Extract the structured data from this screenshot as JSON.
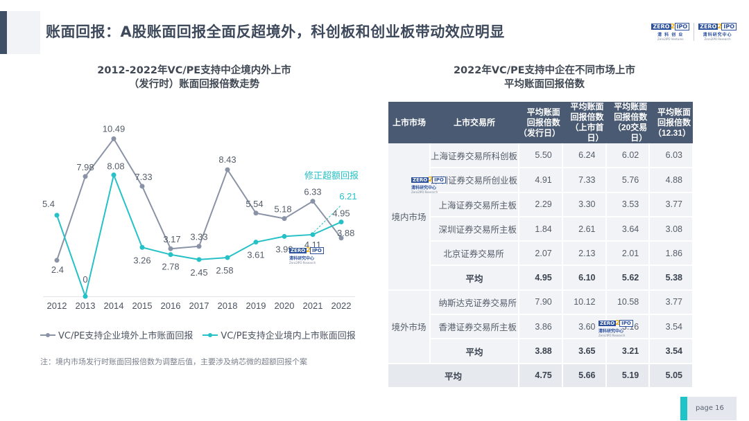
{
  "header": {
    "title": "账面回报：A股账面回报全面反超境外，科创板和创业板带动效应明显",
    "logos": [
      {
        "mark_left": "ZERO",
        "mark_mid": "2",
        "mark_right": "IPO",
        "cn": "清 科 创 业",
        "en": "Zero2IPO Ventures"
      },
      {
        "mark_left": "ZERO",
        "mark_mid": "2",
        "mark_right": "IPO",
        "cn": "清科研究中心",
        "en": "Zero2IPO Research"
      }
    ]
  },
  "colors": {
    "overseas_series": "#8a93a6",
    "domestic_series": "#25c1c6",
    "table_header": "#4a5a72",
    "accent": "#1fc3c8"
  },
  "left_panel": {
    "title_line1": "2012-2022年VC/PE支持中企境内外上市",
    "title_line2": "（发行时）账面回报倍数走势",
    "annotation": "修正超额回报",
    "legend": [
      {
        "label": "VC/PE支持企业境外上市账面回报"
      },
      {
        "label": "VC/PE支持企业境内上市账面回报"
      }
    ],
    "note": "注：境内市场发行时账面回报倍数为调整后值，主要涉及纳芯微的超额回报个案"
  },
  "chart_data": {
    "type": "line",
    "title": "2012-2022年VC/PE支持中企境内外上市（发行时）账面回报倍数走势",
    "xlabel": "",
    "ylabel": "",
    "x": [
      "2012",
      "2013",
      "2014",
      "2015",
      "2016",
      "2017",
      "2018",
      "2019",
      "2020",
      "2021",
      "2022"
    ],
    "series": [
      {
        "name": "VC/PE支持企业境外上市账面回报",
        "values": [
          2.4,
          7.98,
          10.49,
          7.33,
          3.17,
          3.33,
          8.43,
          5.54,
          5.18,
          6.33,
          3.88
        ]
      },
      {
        "name": "VC/PE支持企业境内上市账面回报",
        "values": [
          5.4,
          0,
          8.08,
          3.26,
          2.78,
          2.45,
          2.58,
          3.61,
          3.99,
          4.11,
          4.95
        ]
      }
    ],
    "annotations": [
      {
        "text": "修正超额回报",
        "value": 6.21,
        "x": "2022",
        "style": "dashed",
        "series": "VC/PE支持企业境内上市账面回报"
      }
    ],
    "ylim": [
      0,
      11
    ],
    "grid": false,
    "legend_position": "bottom"
  },
  "right_panel": {
    "title_line1": "2022年VC/PE支持中企在不同市场上市",
    "title_line2": "平均账面回报倍数",
    "table": {
      "headers": {
        "market": "上市市场",
        "exchange": "上市交易所",
        "col1": [
          "平均账面",
          "回报倍数",
          "（发行日）"
        ],
        "col2": [
          "平均账面",
          "回报倍数",
          "（上市首日）"
        ],
        "col3": [
          "平均账面",
          "回报倍数",
          "（20交易日）"
        ],
        "col4": [
          "平均账面",
          "回报倍数",
          "（12.31）"
        ]
      },
      "groups": [
        {
          "market": "境内市场",
          "rows": [
            {
              "exchange": "上海证券交易所科创板",
              "values": [
                "5.50",
                "6.24",
                "6.02",
                "6.03"
              ]
            },
            {
              "exchange": "深圳证券交易所创业板",
              "values": [
                "4.91",
                "7.33",
                "5.76",
                "4.88"
              ]
            },
            {
              "exchange": "上海证券交易所主板",
              "values": [
                "2.29",
                "3.30",
                "3.53",
                "3.77"
              ]
            },
            {
              "exchange": "深圳证券交易所主板",
              "values": [
                "1.84",
                "2.61",
                "3.64",
                "3.08"
              ]
            },
            {
              "exchange": "北京证券交易所",
              "values": [
                "2.07",
                "2.13",
                "2.01",
                "1.86"
              ]
            }
          ],
          "average": {
            "label": "平均",
            "values": [
              "4.95",
              "6.10",
              "5.62",
              "5.38"
            ]
          }
        },
        {
          "market": "境外市场",
          "rows": [
            {
              "exchange": "纳斯达克证券交易所",
              "values": [
                "7.90",
                "10.12",
                "10.58",
                "3.77"
              ]
            },
            {
              "exchange": "香港证券交易所主板",
              "values": [
                "3.86",
                "3.60",
                "3.16",
                "3.54"
              ]
            }
          ],
          "average": {
            "label": "平均",
            "values": [
              "3.88",
              "3.65",
              "3.21",
              "3.54"
            ]
          }
        }
      ],
      "total": {
        "label": "平均",
        "values": [
          "4.75",
          "5.66",
          "5.19",
          "5.05"
        ]
      }
    }
  },
  "watermark": {
    "mark_left": "ZERO",
    "mark_mid": "2",
    "mark_right": "IPO",
    "cn": "清科研究中心",
    "en": "Zero2IPO Research"
  },
  "footer": {
    "page_label": "page",
    "page_number": "16",
    "page_text": "page  16"
  }
}
